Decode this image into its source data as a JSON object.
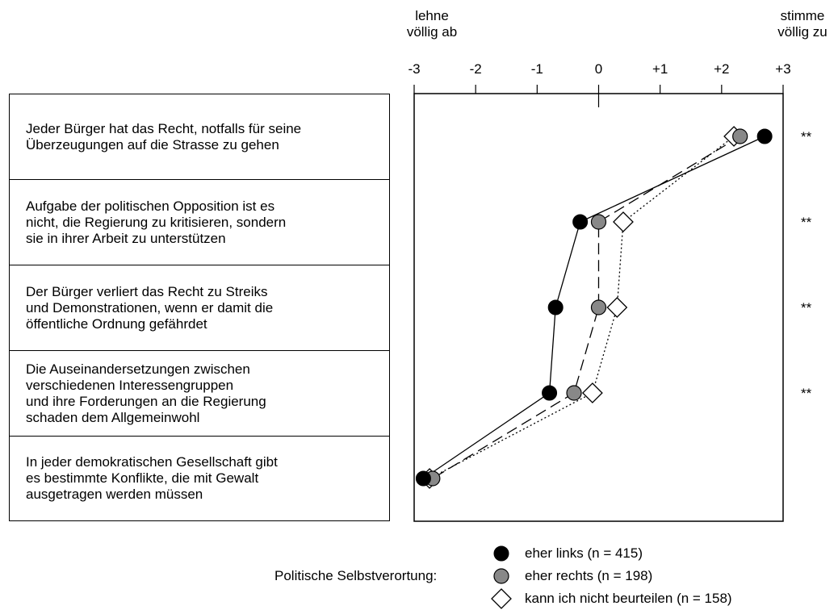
{
  "header": {
    "left_label": "lehne\nvöllig ab",
    "right_label": "stimme\nvöllig zu"
  },
  "statements": [
    "Jeder Bürger hat das Recht, notfalls für seine\nÜberzeugungen auf die Strasse zu gehen",
    "Aufgabe der politischen Opposition ist es\nnicht, die Regierung zu kritisieren, sondern\nsie in ihrer Arbeit zu unterstützen",
    "Der Bürger verliert das Recht zu Streiks\nund Demonstrationen, wenn er damit die\nöffentliche Ordnung gefährdet",
    "Die Auseinandersetzungen zwischen\nverschiedenen Interessengruppen\nund ihre Forderungen an die Regierung\nschaden dem Allgemeinwohl",
    "In jeder demokratischen Gesellschaft gibt\nes bestimmte Konflikte, die mit Gewalt\nausgetragen werden müssen"
  ],
  "legend": {
    "title": "Politische Selbstverortung:",
    "items": [
      {
        "label": "eher links (n = 415)",
        "marker": "filled-circle",
        "color": "#000000"
      },
      {
        "label": "eher rechts (n = 198)",
        "marker": "gray-circle",
        "color": "#888888"
      },
      {
        "label": "kann ich nicht beurteilen (n = 158)",
        "marker": "open-diamond",
        "color": "#ffffff"
      }
    ]
  },
  "chart_data": {
    "type": "line",
    "orientation": "horizontal",
    "xlim": [
      -3,
      3
    ],
    "x_ticks": [
      "-3",
      "-2",
      "-1",
      "0",
      "+1",
      "+2",
      "+3"
    ],
    "x_tick_values": [
      -3,
      -2,
      -1,
      0,
      1,
      2,
      3
    ],
    "categories": [
      "Statement 1",
      "Statement 2",
      "Statement 3",
      "Statement 4",
      "Statement 5"
    ],
    "significance": [
      "**",
      "**",
      "**",
      "**",
      ""
    ],
    "series": [
      {
        "name": "eher links (n = 415)",
        "values": [
          2.7,
          -0.3,
          -0.7,
          -0.8,
          -2.85
        ],
        "line": "solid",
        "marker": "filled-circle",
        "color": "#000000"
      },
      {
        "name": "eher rechts (n = 198)",
        "values": [
          2.3,
          0.0,
          0.0,
          -0.4,
          -2.7
        ],
        "line": "dashed",
        "marker": "gray-circle",
        "color": "#888888"
      },
      {
        "name": "kann ich nicht beurteilen (n = 158)",
        "values": [
          2.2,
          0.4,
          0.3,
          -0.1,
          -2.75
        ],
        "line": "dotted",
        "marker": "open-diamond",
        "color": "#ffffff"
      }
    ]
  }
}
